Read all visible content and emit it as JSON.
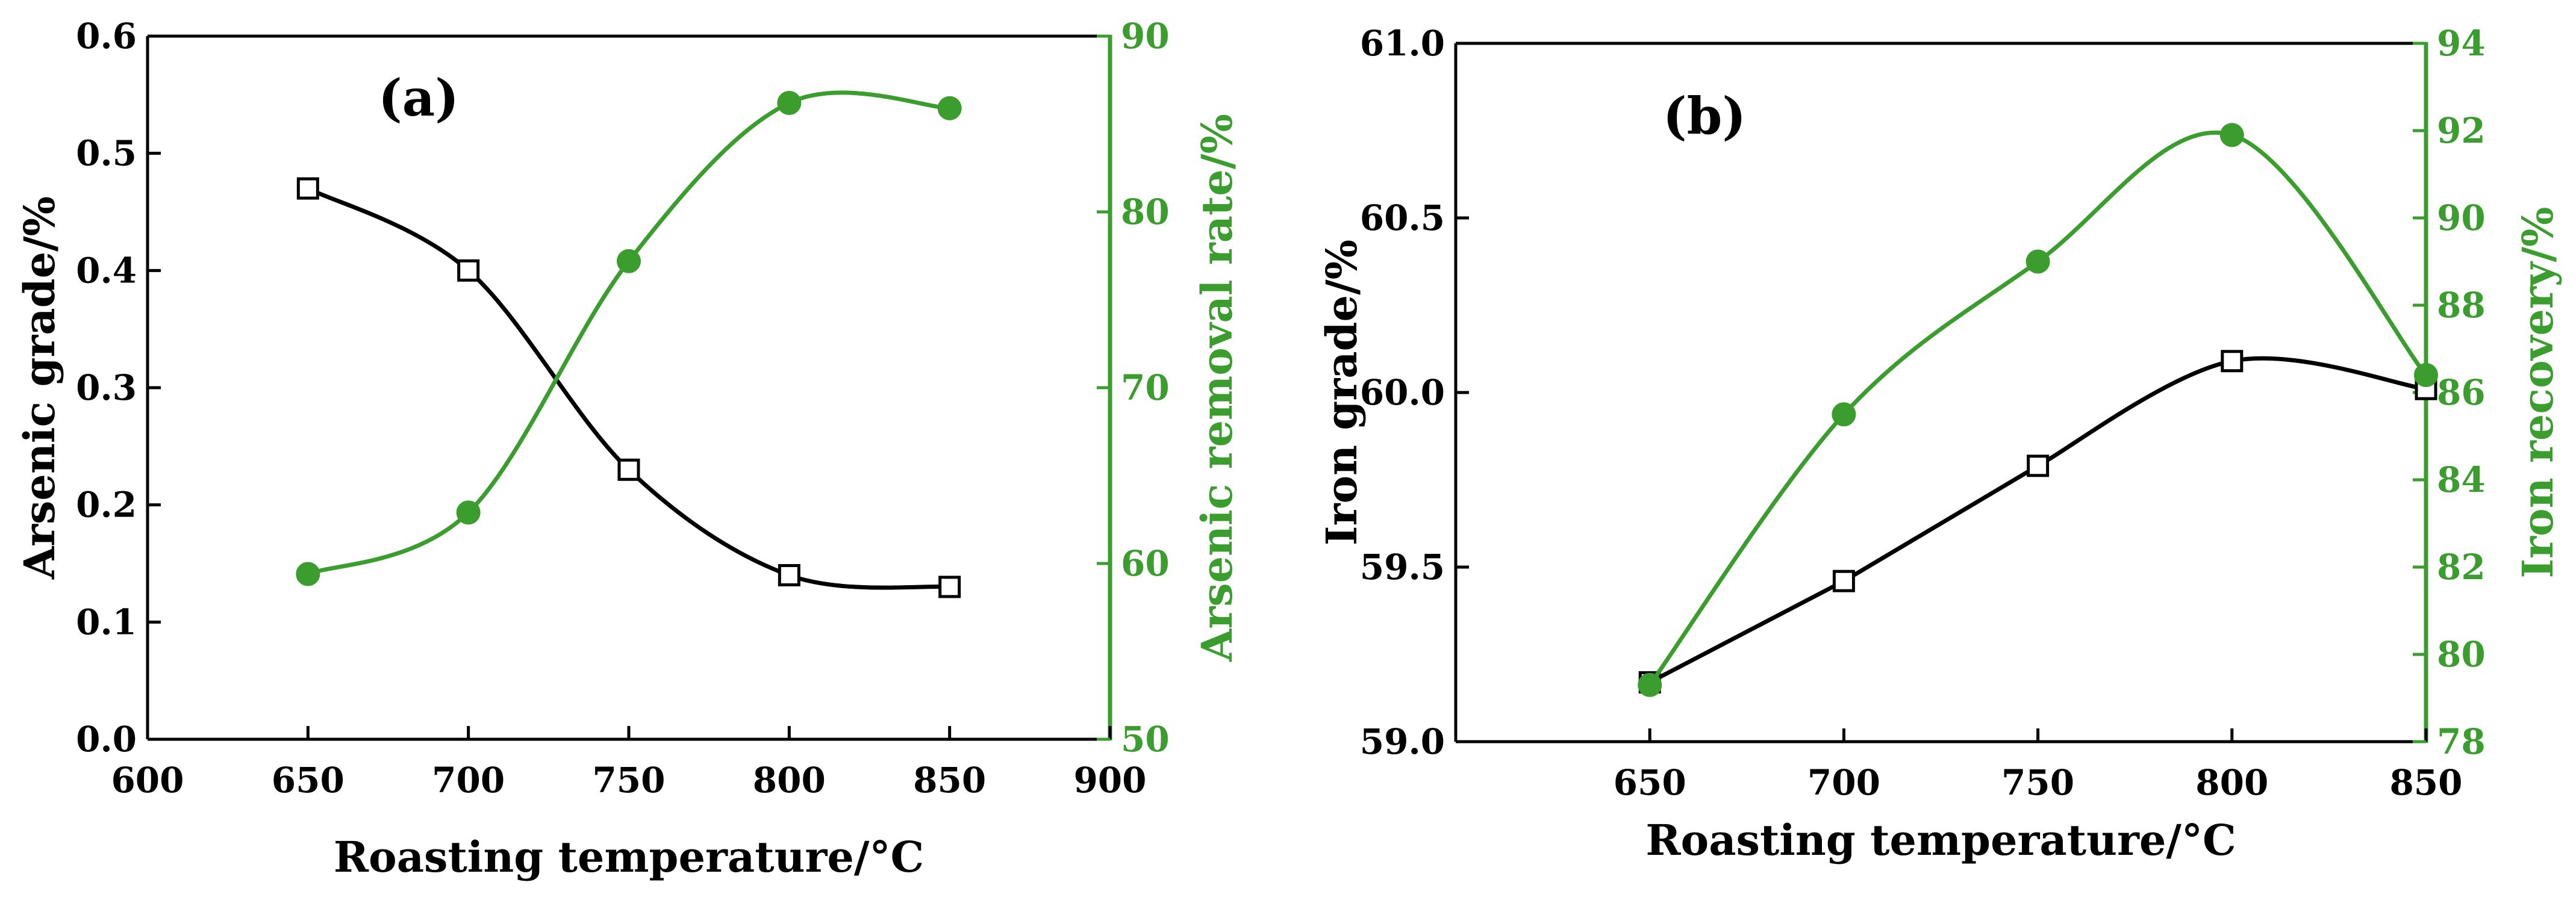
{
  "chart_data": [
    {
      "type": "line",
      "panel_label": "(a)",
      "xlabel": "Roasting temperature/°C",
      "xlim": [
        600,
        900
      ],
      "x_ticks": [
        600,
        650,
        700,
        750,
        800,
        850,
        900
      ],
      "ylabel_left": "Arsenic grade/%",
      "ylim_left": [
        0.0,
        0.6
      ],
      "y_ticks_left": [
        "0.0",
        "0.1",
        "0.2",
        "0.3",
        "0.4",
        "0.5",
        "0.6"
      ],
      "ylabel_right": "Arsenic removal rate/%",
      "ylim_right": [
        50,
        90
      ],
      "y_ticks_right": [
        "50",
        "60",
        "70",
        "80",
        "90"
      ],
      "grid": false,
      "legend": "none",
      "x": [
        650,
        700,
        750,
        800,
        850
      ],
      "series": [
        {
          "name": "Arsenic grade",
          "axis": "left",
          "color": "#000000",
          "marker": "open-square",
          "values": [
            0.47,
            0.4,
            0.23,
            0.14,
            0.13
          ]
        },
        {
          "name": "Arsenic removal rate",
          "axis": "right",
          "color": "#3a9d2e",
          "marker": "filled-circle",
          "values": [
            59.4,
            62.9,
            77.2,
            86.2,
            85.9
          ]
        }
      ]
    },
    {
      "type": "line",
      "panel_label": "(b)",
      "xlabel": "Roasting temperature/°C",
      "xlim": [
        600,
        850
      ],
      "x_ticks": [
        650,
        700,
        750,
        800,
        850
      ],
      "ylabel_left": "Iron grade/%",
      "ylim_left": [
        59.0,
        61.0
      ],
      "y_ticks_left": [
        "59.0",
        "59.5",
        "60.0",
        "60.5",
        "61.0"
      ],
      "ylabel_right": "Iron recovery/%",
      "ylim_right": [
        78,
        94
      ],
      "y_ticks_right": [
        "78",
        "80",
        "82",
        "84",
        "86",
        "88",
        "90",
        "92",
        "94"
      ],
      "grid": false,
      "legend": "none",
      "x": [
        650,
        700,
        750,
        800,
        850
      ],
      "series": [
        {
          "name": "Iron grade",
          "axis": "left",
          "color": "#000000",
          "marker": "open-square",
          "values": [
            59.17,
            59.46,
            59.79,
            60.09,
            60.01
          ]
        },
        {
          "name": "Iron recovery",
          "axis": "right",
          "color": "#3a9d2e",
          "marker": "filled-circle",
          "values": [
            79.3,
            85.5,
            89.0,
            91.9,
            86.4
          ]
        }
      ]
    }
  ]
}
